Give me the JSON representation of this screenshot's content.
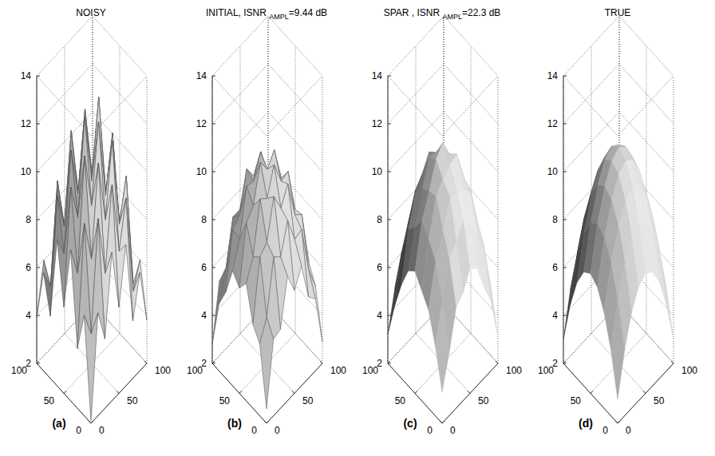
{
  "chart_data": [
    {
      "type": "surface",
      "title": [
        {
          "text": "NOISY"
        }
      ],
      "label": "(a)",
      "color": "#555555",
      "line_style": "solid",
      "grid": true,
      "x": [
        0,
        12.5,
        25,
        37.5,
        50,
        62.5,
        75,
        87.5,
        100
      ],
      "y": [
        0,
        12.5,
        25,
        37.5,
        50,
        62.5,
        75,
        87.5,
        100
      ],
      "xlim": [
        0,
        100
      ],
      "ylim": [
        0,
        100
      ],
      "zlim": [
        2,
        14
      ],
      "xticks": [
        0,
        50,
        100
      ],
      "yticks": [
        0,
        50,
        100
      ],
      "zticks": [
        2,
        4,
        6,
        8,
        10,
        12,
        14
      ],
      "z": [
        [
          2.1,
          6.3,
          4.9,
          8.2,
          5.6,
          7.9,
          4.4,
          6.1,
          3.8
        ],
        [
          6.2,
          5.1,
          9.6,
          7.0,
          10.4,
          7.3,
          9.2,
          5.0,
          6.0
        ],
        [
          4.5,
          9.4,
          7.6,
          11.3,
          8.6,
          11.6,
          7.8,
          9.5,
          4.7
        ],
        [
          8.3,
          7.0,
          11.6,
          9.2,
          12.4,
          9.0,
          11.3,
          7.2,
          8.1
        ],
        [
          5.6,
          10.3,
          8.7,
          12.6,
          9.6,
          12.8,
          8.5,
          10.1,
          5.5
        ],
        [
          8.1,
          7.2,
          11.2,
          9.1,
          12.3,
          9.3,
          11.5,
          7.0,
          8.4
        ],
        [
          4.6,
          9.3,
          7.7,
          11.4,
          8.5,
          11.2,
          7.6,
          9.6,
          4.8
        ],
        [
          6.1,
          5.2,
          9.3,
          7.1,
          10.2,
          7.0,
          9.4,
          5.3,
          6.3
        ],
        [
          3.9,
          6.0,
          4.6,
          8.1,
          5.4,
          8.3,
          4.5,
          6.2,
          2.5
        ]
      ]
    },
    {
      "type": "surface",
      "title": [
        {
          "text": "INITIAL, ISNR "
        },
        {
          "text": "AMPL",
          "sub": true
        },
        {
          "text": "=9.44 dB"
        }
      ],
      "label": "(b)",
      "color": "#666666",
      "line_style": "solid",
      "grid": true,
      "x": [
        0,
        12.5,
        25,
        37.5,
        50,
        62.5,
        75,
        87.5,
        100
      ],
      "y": [
        0,
        12.5,
        25,
        37.5,
        50,
        62.5,
        75,
        87.5,
        100
      ],
      "xlim": [
        0,
        100
      ],
      "ylim": [
        0,
        100
      ],
      "zlim": [
        2,
        14
      ],
      "xticks": [
        0,
        50,
        100
      ],
      "yticks": [
        0,
        50,
        100
      ],
      "zticks": [
        2,
        4,
        6,
        8,
        10,
        12,
        14
      ],
      "z": [
        [
          2.6,
          5.2,
          5.3,
          7.2,
          6.3,
          7.0,
          5.4,
          5.0,
          2.9
        ],
        [
          5.0,
          5.8,
          8.0,
          7.7,
          8.9,
          7.8,
          7.9,
          5.9,
          4.9
        ],
        [
          5.5,
          8.0,
          8.3,
          9.9,
          9.1,
          9.8,
          8.2,
          7.9,
          5.6
        ],
        [
          6.9,
          7.7,
          9.8,
          9.5,
          10.6,
          9.6,
          9.7,
          7.8,
          6.8
        ],
        [
          6.4,
          8.8,
          9.2,
          10.7,
          10.1,
          10.6,
          9.1,
          8.7,
          6.5
        ],
        [
          6.8,
          7.8,
          9.7,
          9.6,
          10.5,
          9.4,
          9.8,
          7.6,
          6.9
        ],
        [
          5.6,
          7.9,
          8.2,
          9.8,
          9.2,
          9.9,
          8.1,
          8.0,
          5.4
        ],
        [
          4.8,
          5.9,
          7.8,
          7.8,
          8.8,
          7.7,
          8.0,
          5.8,
          5.0
        ],
        [
          2.8,
          5.1,
          5.4,
          7.0,
          6.2,
          7.1,
          5.2,
          5.1,
          2.7
        ]
      ]
    },
    {
      "type": "surface",
      "title": [
        {
          "text": "SPAR , ISNR "
        },
        {
          "text": "AMPL",
          "sub": true
        },
        {
          "text": "=22.3 dB"
        }
      ],
      "label": "(c)",
      "color": "#b4b4b4",
      "line_style": "none",
      "grid": true,
      "x": [
        0,
        12.5,
        25,
        37.5,
        50,
        62.5,
        75,
        87.5,
        100
      ],
      "y": [
        0,
        12.5,
        25,
        37.5,
        50,
        62.5,
        75,
        87.5,
        100
      ],
      "xlim": [
        0,
        100
      ],
      "ylim": [
        0,
        100
      ],
      "zlim": [
        2,
        14
      ],
      "xticks": [
        0,
        50,
        100
      ],
      "yticks": [
        0,
        50,
        100
      ],
      "zticks": [
        2,
        4,
        6,
        8,
        10,
        12,
        14
      ],
      "z": [
        [
          3.3,
          4.6,
          6.2,
          6.5,
          7.2,
          6.9,
          5.8,
          4.9,
          3.1
        ],
        [
          4.9,
          6.4,
          7.9,
          8.3,
          8.9,
          8.4,
          7.6,
          6.6,
          4.8
        ],
        [
          6.1,
          7.8,
          8.8,
          9.9,
          9.8,
          9.6,
          9.1,
          7.6,
          6.2
        ],
        [
          6.6,
          8.4,
          9.9,
          10.3,
          10.6,
          10.7,
          9.5,
          8.6,
          6.9
        ],
        [
          7.1,
          8.9,
          9.8,
          10.8,
          11.2,
          10.4,
          10.1,
          8.6,
          6.8
        ],
        [
          6.8,
          8.3,
          9.6,
          10.6,
          10.5,
          10.4,
          9.8,
          8.4,
          6.6
        ],
        [
          5.9,
          7.9,
          9.1,
          9.6,
          10.2,
          9.7,
          8.8,
          7.9,
          6.1
        ],
        [
          4.7,
          6.6,
          7.6,
          8.6,
          8.6,
          8.3,
          7.9,
          6.4,
          4.9
        ],
        [
          3.2,
          4.8,
          5.9,
          6.9,
          6.8,
          6.6,
          6.1,
          4.7,
          3.4
        ]
      ]
    },
    {
      "type": "surface",
      "title": [
        {
          "text": "TRUE"
        }
      ],
      "label": "(d)",
      "color": "#b4b4b4",
      "line_style": "none",
      "grid": true,
      "x": [
        0,
        12.5,
        25,
        37.5,
        50,
        62.5,
        75,
        87.5,
        100
      ],
      "y": [
        0,
        12.5,
        25,
        37.5,
        50,
        62.5,
        75,
        87.5,
        100
      ],
      "xlim": [
        0,
        100
      ],
      "ylim": [
        0,
        100
      ],
      "zlim": [
        2,
        14
      ],
      "xticks": [
        0,
        50,
        100
      ],
      "yticks": [
        0,
        50,
        100
      ],
      "zticks": [
        2,
        4,
        6,
        8,
        10,
        12,
        14
      ],
      "z": [
        [
          3,
          4.75,
          6,
          6.75,
          7,
          6.75,
          6,
          4.75,
          3
        ],
        [
          4.75,
          6.5,
          7.75,
          8.5,
          8.75,
          8.5,
          7.75,
          6.5,
          4.75
        ],
        [
          6,
          7.75,
          9,
          9.75,
          10,
          9.75,
          9,
          7.75,
          6
        ],
        [
          6.75,
          8.5,
          9.75,
          10.5,
          10.75,
          10.5,
          9.75,
          8.5,
          6.75
        ],
        [
          7,
          8.75,
          10,
          10.75,
          11,
          10.75,
          10,
          8.75,
          7
        ],
        [
          6.75,
          8.5,
          9.75,
          10.5,
          10.75,
          10.5,
          9.75,
          8.5,
          6.75
        ],
        [
          6,
          7.75,
          9,
          9.75,
          10,
          9.75,
          9,
          7.75,
          6
        ],
        [
          4.75,
          6.5,
          7.75,
          8.5,
          8.75,
          8.5,
          7.75,
          6.5,
          4.75
        ],
        [
          3,
          4.75,
          6,
          6.75,
          7,
          6.75,
          6,
          4.75,
          3
        ]
      ]
    }
  ]
}
